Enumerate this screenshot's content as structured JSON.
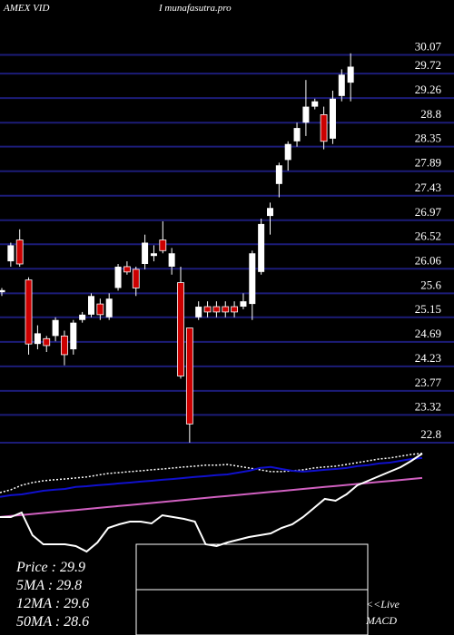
{
  "chart_data": {
    "type": "candlestick",
    "title": "AMEX VID",
    "subtitle": "I munafasutra.pro",
    "ylim": [
      22.68,
      31.1
    ],
    "yticks": [
      30.07,
      29.72,
      29.26,
      28.8,
      28.35,
      27.89,
      27.43,
      26.97,
      26.52,
      26.06,
      25.6,
      25.15,
      24.69,
      24.23,
      23.77,
      23.32,
      22.8
    ],
    "grid": true,
    "up_color": "#ffffff",
    "down_color": "#cc0000",
    "grid_color": "#1c1c78",
    "open": [
      25.62,
      26.2,
      26.6,
      25.85,
      24.65,
      24.75,
      24.8,
      24.8,
      24.55,
      25.1,
      25.2,
      25.4,
      25.15,
      25.7,
      26.1,
      26.05,
      26.15,
      26.3,
      26.6,
      26.1,
      25.8,
      24.95,
      25.15,
      25.35,
      25.35,
      25.35,
      25.35,
      25.35,
      25.4,
      26.0,
      27.05,
      27.65,
      28.1,
      28.45,
      28.8,
      29.1,
      28.95,
      28.5,
      29.3,
      29.55
    ],
    "high": [
      25.7,
      26.55,
      26.8,
      25.9,
      25.0,
      24.8,
      25.15,
      24.9,
      25.1,
      25.25,
      25.6,
      25.5,
      25.6,
      26.15,
      26.2,
      26.1,
      26.7,
      26.5,
      26.95,
      26.45,
      26.1,
      24.95,
      25.45,
      25.45,
      25.45,
      25.45,
      25.45,
      25.6,
      26.4,
      27.0,
      27.3,
      28.05,
      28.45,
      28.8,
      29.6,
      29.25,
      29.1,
      29.4,
      29.8,
      30.1
    ],
    "low": [
      25.55,
      26.1,
      26.1,
      24.45,
      24.55,
      24.5,
      24.7,
      24.25,
      24.45,
      25.05,
      25.15,
      25.1,
      25.1,
      25.65,
      25.95,
      25.55,
      26.05,
      26.2,
      26.35,
      25.95,
      24.0,
      22.8,
      25.1,
      25.15,
      25.15,
      25.15,
      25.15,
      25.3,
      25.1,
      25.95,
      26.7,
      27.4,
      27.9,
      28.35,
      28.55,
      29.05,
      28.3,
      28.4,
      29.2,
      29.2
    ],
    "close": [
      25.66,
      26.5,
      26.15,
      24.65,
      24.85,
      24.62,
      25.1,
      24.45,
      25.05,
      25.2,
      25.55,
      25.2,
      25.5,
      26.1,
      26.0,
      25.7,
      26.55,
      26.35,
      26.4,
      26.35,
      24.05,
      23.15,
      25.35,
      25.25,
      25.25,
      25.25,
      25.25,
      25.45,
      26.35,
      26.9,
      27.2,
      28.0,
      28.4,
      28.7,
      29.1,
      29.2,
      28.45,
      29.25,
      29.7,
      29.85
    ],
    "lower_ylim": [
      20.74,
      30.05
    ],
    "y2lim": [
      0,
      2.05
    ],
    "lower_series": [
      {
        "name": "5MA",
        "color": "#ffffff",
        "dashed": true,
        "values": [
          27.87,
          28.01,
          28.24,
          28.37,
          28.46,
          28.51,
          28.55,
          28.6,
          28.65,
          28.74,
          28.83,
          28.87,
          28.92,
          28.96,
          29.01,
          29.05,
          29.1,
          29.15,
          29.19,
          29.24,
          29.24,
          29.28,
          29.19,
          29.1,
          29.01,
          28.92,
          28.92,
          28.96,
          29.01,
          29.1,
          29.15,
          29.19,
          29.28,
          29.37,
          29.46,
          29.55,
          29.6,
          29.69,
          29.78,
          29.83
        ]
      },
      {
        "name": "12MA",
        "color": "#1010cc",
        "values": [
          27.65,
          27.74,
          27.78,
          27.87,
          27.96,
          28.01,
          28.05,
          28.15,
          28.19,
          28.24,
          28.28,
          28.33,
          28.37,
          28.42,
          28.46,
          28.51,
          28.55,
          28.6,
          28.65,
          28.69,
          28.74,
          28.78,
          28.87,
          28.96,
          29.1,
          29.15,
          29.05,
          28.96,
          28.92,
          28.96,
          29.01,
          29.05,
          29.1,
          29.19,
          29.24,
          29.33,
          29.37,
          29.46,
          29.55,
          29.6
        ]
      },
      {
        "name": "50MA",
        "color": "#d060c0",
        "values": [
          26.65,
          26.7,
          26.75,
          26.8,
          26.85,
          26.9,
          26.95,
          27.0,
          27.05,
          27.1,
          27.15,
          27.2,
          27.25,
          27.3,
          27.35,
          27.4,
          27.45,
          27.5,
          27.55,
          27.6,
          27.65,
          27.7,
          27.75,
          27.8,
          27.85,
          27.9,
          27.95,
          28.0,
          28.05,
          28.1,
          28.15,
          28.2,
          28.25,
          28.3,
          28.35,
          28.4,
          28.45,
          28.5,
          28.55,
          28.6
        ]
      },
      {
        "name": "MACD",
        "axis": "y2",
        "color": "#ffffff",
        "values": [
          1.3,
          1.3,
          1.35,
          1.1,
          1.0,
          1.0,
          1.0,
          0.98,
          0.92,
          1.02,
          1.18,
          1.22,
          1.25,
          1.25,
          1.23,
          1.32,
          1.3,
          1.28,
          1.25,
          1.0,
          0.98,
          1.02,
          1.05,
          1.08,
          1.1,
          1.12,
          1.18,
          1.22,
          1.3,
          1.4,
          1.5,
          1.48,
          1.55,
          1.65,
          1.7,
          1.75,
          1.8,
          1.85,
          1.92,
          2.0
        ]
      }
    ],
    "info_lines": [
      "Price  : 29.9",
      "5MA : 29.8",
      "12MA : 29.6",
      "50MA : 28.6"
    ],
    "live_label": "<<Live",
    "macd_label": "MACD"
  }
}
